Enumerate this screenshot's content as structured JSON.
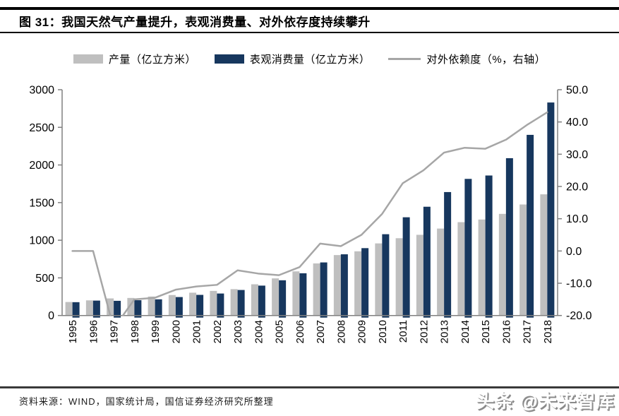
{
  "figure": {
    "title": "图 31：我国天然气产量提升，表观消费量、对外依存度持续攀升",
    "source": "资料来源：WIND，国家统计局，国信证券经济研究所整理",
    "watermark": "头条 @未来智库"
  },
  "colors": {
    "production_bar": "#BFBFBF",
    "consumption_bar": "#17375E",
    "dependence_line": "#A6A6A6",
    "axis": "#808080",
    "tick_text": "#000000"
  },
  "chart_data": {
    "type": "bar",
    "subtype": "grouped bars with secondary-axis line",
    "categories": [
      "1995",
      "1996",
      "1997",
      "1998",
      "1999",
      "2000",
      "2001",
      "2002",
      "2003",
      "2004",
      "2005",
      "2006",
      "2007",
      "2008",
      "2009",
      "2010",
      "2011",
      "2012",
      "2013",
      "2014",
      "2015",
      "2016",
      "2017",
      "2018"
    ],
    "series": [
      {
        "name": "产量（亿立方米）",
        "type": "bar",
        "axis": "left",
        "values": [
          179,
          201,
          227,
          233,
          252,
          272,
          303,
          327,
          350,
          415,
          493,
          586,
          692,
          803,
          853,
          958,
          1027,
          1072,
          1155,
          1240,
          1275,
          1350,
          1475,
          1610
        ]
      },
      {
        "name": "表观消费量（亿立方米）",
        "type": "bar",
        "axis": "left",
        "values": [
          177,
          198,
          195,
          203,
          215,
          245,
          274,
          292,
          339,
          397,
          468,
          561,
          705,
          813,
          895,
          1080,
          1305,
          1445,
          1640,
          1815,
          1860,
          2090,
          2400,
          2830
        ]
      },
      {
        "name": "对外依赖度（%，右轴）",
        "type": "line",
        "axis": "right",
        "values": [
          0,
          0,
          -24,
          -15,
          -14.5,
          -12,
          -11,
          -10.5,
          -6,
          -7,
          -7.5,
          -5,
          2.3,
          1.5,
          5,
          11.5,
          21,
          25,
          30.5,
          32,
          31.7,
          34.5,
          39,
          43
        ]
      }
    ],
    "left_axis": {
      "min": 0,
      "max": 3000,
      "step": 500,
      "tick_labels": [
        "3000",
        "2500",
        "2000",
        "1500",
        "1000",
        "500",
        "0"
      ]
    },
    "right_axis": {
      "min": -20,
      "max": 50,
      "step": 10,
      "tick_labels": [
        "50.0",
        "40.0",
        "30.0",
        "20.0",
        "10.0",
        "0.0",
        "-10.0",
        "-20.0"
      ]
    },
    "grid": false,
    "legend_position": "top",
    "note": "1997 line value falls below right-axis minimum and is clipped at plot bottom"
  }
}
